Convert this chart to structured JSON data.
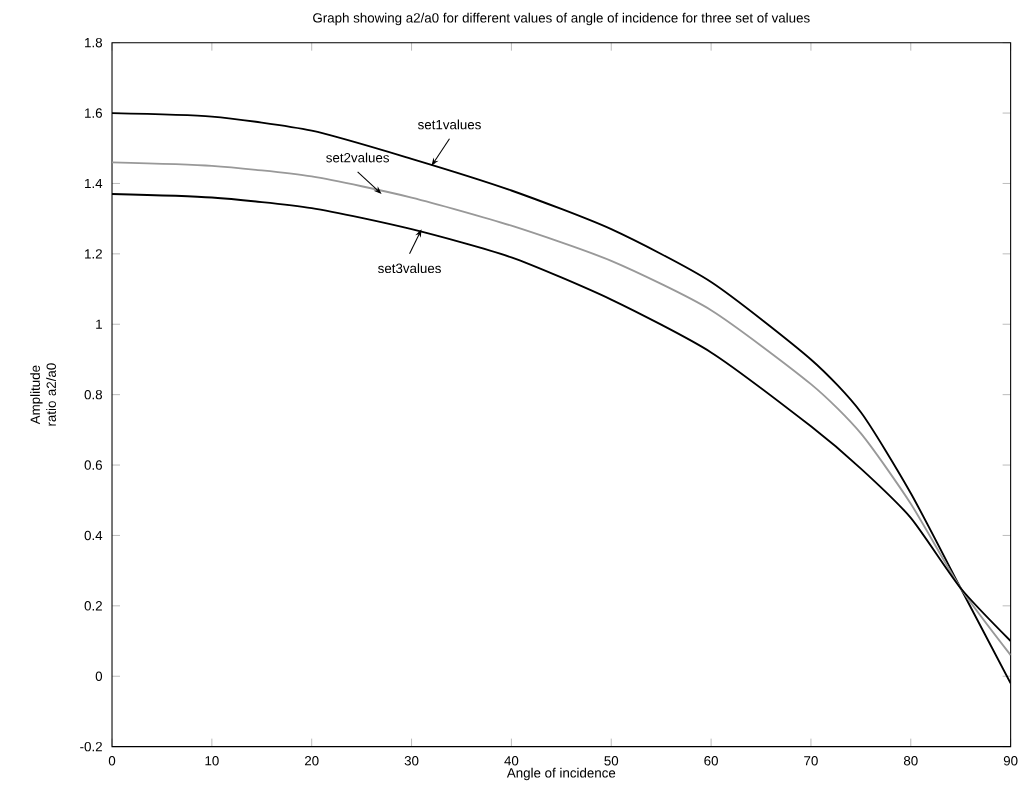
{
  "chart_data": {
    "type": "line",
    "title": "Graph showing a2/a0 for different values of angle of incidence for three set of values",
    "xlabel": "Angle of incidence",
    "ylabel": "Amplitude ratio a2/a0",
    "x": [
      0,
      10,
      20,
      30,
      40,
      50,
      60,
      70,
      75,
      80,
      85,
      90
    ],
    "series": [
      {
        "color": "#000000",
        "values": [
          1.6,
          1.59,
          1.55,
          1.47,
          1.38,
          1.27,
          1.12,
          0.9,
          0.75,
          0.52,
          0.25,
          -0.02
        ]
      },
      {
        "color": "#999999",
        "values": [
          1.46,
          1.45,
          1.42,
          1.36,
          1.28,
          1.18,
          1.04,
          0.83,
          0.69,
          0.49,
          0.25,
          0.06
        ]
      },
      {
        "color": "#000000",
        "values": [
          1.37,
          1.36,
          1.33,
          1.27,
          1.19,
          1.07,
          0.92,
          0.71,
          0.59,
          0.45,
          0.25,
          0.1
        ]
      }
    ],
    "annotations": [
      {
        "text": "set1values",
        "x": 32,
        "y": 1.45
      },
      {
        "text": "set2values",
        "x": 27,
        "y": 1.37
      },
      {
        "text": "set3values",
        "x": 31,
        "y": 1.27
      }
    ],
    "xlim": [
      0,
      90
    ],
    "ylim": [
      -0.2,
      1.8
    ],
    "xticks": [
      0,
      10,
      20,
      30,
      40,
      50,
      60,
      70,
      80,
      90
    ],
    "yticks": [
      -0.2,
      0,
      0.2,
      0.4,
      0.6,
      0.8,
      1,
      1.2,
      1.4,
      1.6,
      1.8
    ],
    "grid": false,
    "marker": "none",
    "line_style": "solid"
  }
}
